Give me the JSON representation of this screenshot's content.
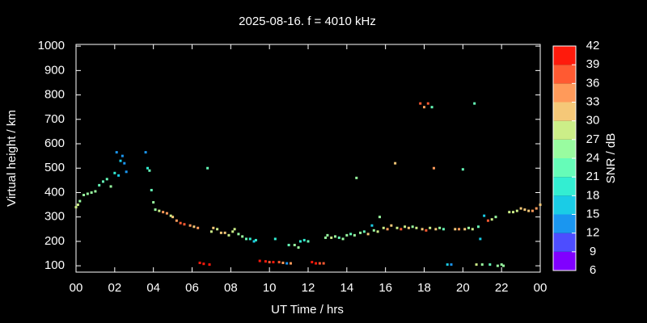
{
  "chart_data": {
    "type": "scatter",
    "title": "2025-08-16. f = 4010 kHz",
    "xlabel": "UT Time / hrs",
    "ylabel": "Virtual height / km",
    "colorbar_label": "SNR / dB",
    "xlim": [
      0,
      24
    ],
    "xticks": [
      {
        "value": 0,
        "label": "00"
      },
      {
        "value": 2,
        "label": "02"
      },
      {
        "value": 4,
        "label": "04"
      },
      {
        "value": 6,
        "label": "06"
      },
      {
        "value": 8,
        "label": "08"
      },
      10,
      12,
      14,
      16,
      18,
      20,
      22,
      {
        "value": 24,
        "label": "00"
      }
    ],
    "ylim": [
      74,
      1007
    ],
    "yticks": [
      100,
      200,
      300,
      400,
      500,
      600,
      700,
      800,
      900,
      1000
    ],
    "clim": [
      6,
      42
    ],
    "cticks": [
      6,
      9,
      12,
      15,
      18,
      21,
      24,
      27,
      30,
      33,
      36,
      39,
      42
    ],
    "colormap": [
      "#8000ff",
      "#4d4dff",
      "#1a96f0",
      "#1acce6",
      "#33eed2",
      "#66fcb8",
      "#99fca0",
      "#ccee88",
      "#f5c878",
      "#ff9a5a",
      "#ff5a32",
      "#ff1a0c"
    ],
    "x": [
      0.0,
      0.1,
      0.2,
      0.4,
      0.6,
      0.8,
      1.0,
      1.2,
      1.4,
      1.6,
      1.8,
      2.0,
      2.1,
      2.2,
      2.3,
      2.4,
      2.5,
      2.6,
      3.6,
      3.7,
      3.8,
      3.9,
      4.0,
      4.1,
      4.3,
      4.5,
      4.7,
      4.9,
      5.0,
      5.2,
      5.4,
      5.6,
      5.9,
      6.1,
      6.3,
      6.4,
      6.6,
      6.9,
      6.8,
      7.0,
      7.1,
      7.3,
      7.5,
      7.7,
      7.9,
      8.1,
      8.2,
      8.4,
      8.6,
      8.8,
      9.0,
      9.2,
      9.3,
      9.5,
      9.8,
      10.0,
      10.2,
      10.3,
      10.5,
      10.7,
      10.9,
      11.1,
      11.0,
      11.3,
      11.5,
      11.6,
      11.8,
      12.0,
      12.2,
      12.4,
      12.6,
      12.8,
      12.9,
      13.0,
      13.2,
      13.4,
      13.6,
      13.8,
      14.0,
      14.2,
      14.4,
      14.5,
      14.7,
      14.9,
      15.1,
      15.3,
      15.4,
      15.6,
      15.7,
      15.9,
      16.1,
      16.3,
      16.5,
      16.6,
      16.8,
      17.0,
      17.2,
      17.4,
      17.6,
      17.8,
      18.0,
      18.2,
      18.4,
      18.5,
      17.9,
      18.1,
      18.3,
      18.6,
      18.8,
      19.0,
      19.2,
      19.4,
      19.6,
      19.8,
      20.0,
      20.1,
      20.3,
      20.5,
      20.7,
      20.6,
      20.8,
      20.9,
      21.0,
      21.1,
      21.3,
      21.5,
      21.7,
      21.4,
      21.8,
      22.0,
      22.1,
      22.4,
      22.6,
      22.8,
      23.0,
      23.2,
      23.4,
      23.6,
      23.8,
      24.0
    ],
    "values": [
      340,
      350,
      365,
      390,
      395,
      400,
      405,
      430,
      445,
      455,
      425,
      480,
      565,
      470,
      530,
      550,
      520,
      485,
      565,
      500,
      490,
      410,
      360,
      330,
      325,
      320,
      315,
      305,
      300,
      285,
      275,
      270,
      265,
      260,
      255,
      112,
      108,
      105,
      500,
      240,
      255,
      250,
      235,
      235,
      225,
      240,
      250,
      230,
      220,
      210,
      210,
      200,
      205,
      120,
      118,
      115,
      115,
      210,
      115,
      112,
      110,
      110,
      185,
      185,
      175,
      200,
      205,
      200,
      115,
      110,
      110,
      110,
      215,
      225,
      215,
      220,
      215,
      210,
      225,
      230,
      225,
      460,
      235,
      240,
      230,
      265,
      245,
      240,
      300,
      255,
      250,
      265,
      520,
      255,
      250,
      260,
      255,
      260,
      255,
      765,
      750,
      765,
      750,
      500,
      250,
      245,
      255,
      250,
      255,
      250,
      105,
      105,
      250,
      250,
      495,
      250,
      255,
      250,
      105,
      765,
      260,
      210,
      105,
      305,
      285,
      290,
      300,
      105,
      100,
      105,
      100,
      320,
      320,
      325,
      335,
      330,
      325,
      325,
      335,
      350
    ],
    "snr": [
      27,
      27,
      24,
      24,
      24,
      24,
      24,
      21,
      21,
      21,
      24,
      18,
      12,
      15,
      15,
      12,
      12,
      12,
      12,
      18,
      21,
      21,
      24,
      24,
      27,
      33,
      33,
      27,
      30,
      33,
      36,
      36,
      33,
      30,
      33,
      39,
      39,
      39,
      21,
      27,
      30,
      27,
      30,
      30,
      27,
      27,
      27,
      24,
      24,
      21,
      18,
      15,
      18,
      39,
      39,
      36,
      39,
      18,
      36,
      33,
      12,
      33,
      21,
      24,
      24,
      18,
      18,
      21,
      39,
      39,
      36,
      36,
      24,
      24,
      27,
      24,
      21,
      24,
      24,
      21,
      24,
      24,
      24,
      21,
      30,
      15,
      24,
      27,
      24,
      27,
      33,
      30,
      30,
      27,
      36,
      27,
      30,
      24,
      27,
      36,
      33,
      36,
      21,
      33,
      30,
      36,
      27,
      30,
      24,
      21,
      15,
      12,
      30,
      33,
      21,
      30,
      24,
      27,
      27,
      21,
      21,
      15,
      24,
      15,
      36,
      27,
      24,
      21,
      24,
      24,
      24,
      27,
      27,
      27,
      30,
      30,
      30,
      33,
      33,
      30
    ]
  }
}
